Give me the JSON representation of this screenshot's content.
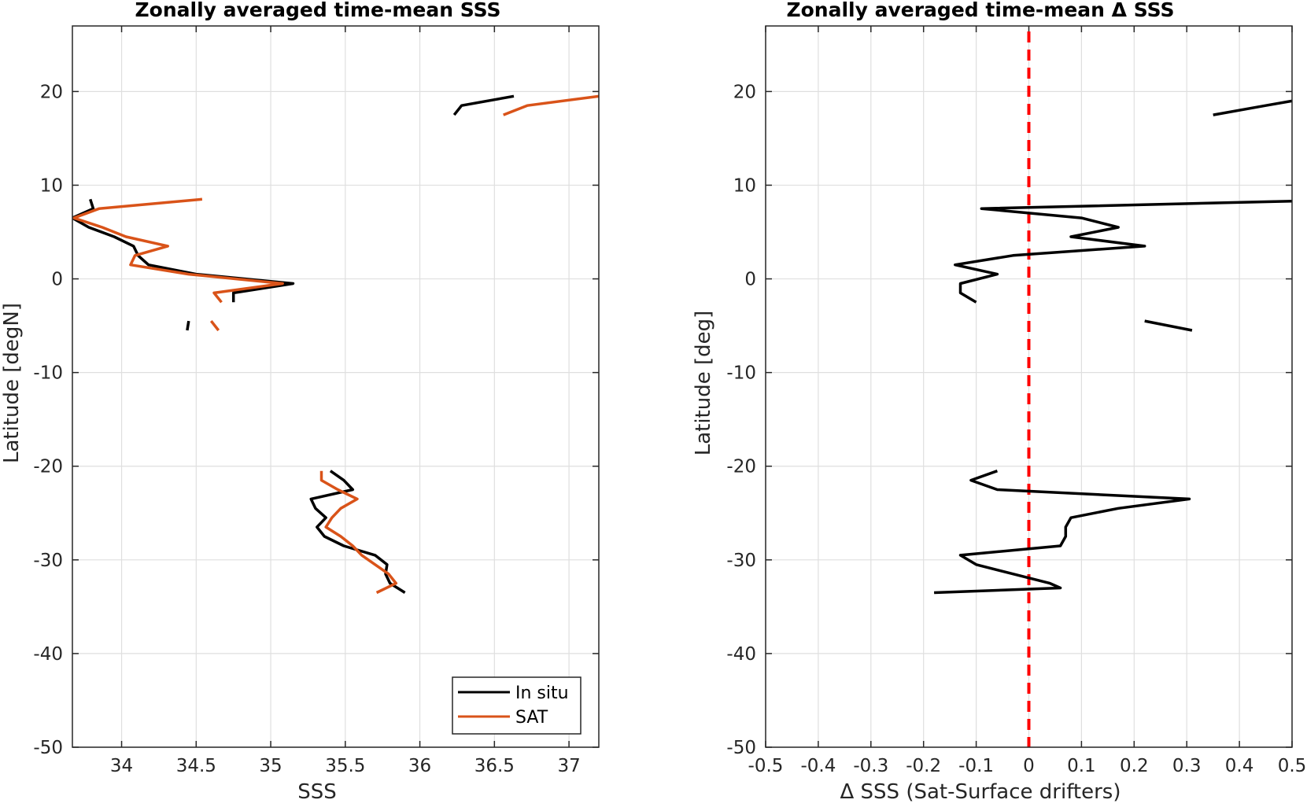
{
  "figure": {
    "colors": {
      "in_situ": "#000000",
      "sat": "#D95319",
      "zero_line": "#FF0000",
      "grid": "#DFDFDF",
      "axes": "#262626"
    }
  },
  "chart_data": [
    {
      "type": "line",
      "title": "Zonally averaged time-mean SSS",
      "xlabel": "SSS",
      "ylabel": "Latitude [degN]",
      "xlim": [
        33.67,
        37.2
      ],
      "ylim": [
        -50,
        27
      ],
      "xticks": [
        34,
        34.5,
        35,
        35.5,
        36,
        36.5,
        37
      ],
      "xtick_labels": [
        "34",
        "34.5",
        "35",
        "35.5",
        "36",
        "36.5",
        "37"
      ],
      "yticks": [
        -50,
        -40,
        -30,
        -20,
        -10,
        0,
        10,
        20
      ],
      "ytick_labels": [
        "-50",
        "-40",
        "-30",
        "-20",
        "-10",
        "0",
        "10",
        "20"
      ],
      "grid": true,
      "legend": {
        "position": "bottom-right",
        "entries": [
          "In situ",
          "SAT"
        ]
      },
      "series": [
        {
          "name": "In situ",
          "color": "#000000",
          "segments": [
            [
              [
                36.23,
                17.5
              ],
              [
                36.28,
                18.5
              ],
              [
                36.63,
                19.5
              ]
            ],
            [
              [
                33.79,
                8.5
              ],
              [
                33.81,
                7.5
              ],
              [
                33.67,
                6.5
              ],
              [
                33.78,
                5.5
              ],
              [
                33.95,
                4.5
              ],
              [
                34.08,
                3.5
              ],
              [
                34.11,
                2.5
              ],
              [
                34.18,
                1.5
              ],
              [
                34.5,
                0.5
              ],
              [
                35.15,
                -0.5
              ],
              [
                34.75,
                -1.5
              ],
              [
                34.75,
                -2.5
              ]
            ],
            [
              [
                34.45,
                -4.5
              ],
              [
                34.44,
                -5.5
              ]
            ],
            [
              [
                35.4,
                -20.5
              ],
              [
                35.49,
                -21.5
              ],
              [
                35.55,
                -22.5
              ],
              [
                35.27,
                -23.5
              ],
              [
                35.3,
                -24.5
              ],
              [
                35.37,
                -25.5
              ],
              [
                35.31,
                -26.5
              ],
              [
                35.36,
                -27.5
              ],
              [
                35.49,
                -28.5
              ],
              [
                35.7,
                -29.5
              ],
              [
                35.78,
                -30.5
              ],
              [
                35.77,
                -31.5
              ],
              [
                35.8,
                -32.5
              ],
              [
                35.9,
                -33.5
              ]
            ]
          ]
        },
        {
          "name": "SAT",
          "color": "#D95319",
          "segments": [
            [
              [
                36.56,
                17.5
              ],
              [
                36.72,
                18.5
              ],
              [
                37.2,
                19.5
              ]
            ],
            [
              [
                34.54,
                8.5
              ],
              [
                33.85,
                7.5
              ],
              [
                33.68,
                6.5
              ],
              [
                33.87,
                5.5
              ],
              [
                34.03,
                4.5
              ],
              [
                34.31,
                3.5
              ],
              [
                34.09,
                2.5
              ],
              [
                34.06,
                1.5
              ],
              [
                34.45,
                0.5
              ],
              [
                35.08,
                -0.5
              ],
              [
                34.62,
                -1.5
              ],
              [
                34.67,
                -2.5
              ]
            ],
            [
              [
                34.6,
                -4.5
              ],
              [
                34.65,
                -5.5
              ]
            ],
            [
              [
                35.34,
                -20.5
              ],
              [
                35.34,
                -21.5
              ],
              [
                35.45,
                -22.5
              ],
              [
                35.58,
                -23.5
              ],
              [
                35.47,
                -24.5
              ],
              [
                35.41,
                -25.5
              ],
              [
                35.37,
                -26.5
              ],
              [
                35.47,
                -27.5
              ],
              [
                35.55,
                -28.5
              ],
              [
                35.61,
                -29.5
              ],
              [
                35.7,
                -30.5
              ],
              [
                35.79,
                -31.5
              ],
              [
                35.84,
                -32.5
              ],
              [
                35.71,
                -33.5
              ]
            ]
          ]
        }
      ]
    },
    {
      "type": "line",
      "title": "Zonally averaged time-mean Δ SSS",
      "xlabel": "Δ SSS (Sat-Surface drifters)",
      "ylabel": "Latitude [deg]",
      "xlim": [
        -0.5,
        0.5
      ],
      "ylim": [
        -50,
        27
      ],
      "xticks": [
        -0.5,
        -0.4,
        -0.3,
        -0.2,
        -0.1,
        0,
        0.1,
        0.2,
        0.3,
        0.4,
        0.5
      ],
      "xtick_labels": [
        "-0.5",
        "-0.4",
        "-0.3",
        "-0.2",
        "-0.1",
        "0",
        "0.1",
        "0.2",
        "0.3",
        "0.4",
        "0.5"
      ],
      "yticks": [
        -50,
        -40,
        -30,
        -20,
        -10,
        0,
        10,
        20
      ],
      "ytick_labels": [
        "-50",
        "-40",
        "-30",
        "-20",
        "-10",
        "0",
        "10",
        "20"
      ],
      "grid": true,
      "reference_line": {
        "x": 0,
        "style": "dashed",
        "color": "#FF0000"
      },
      "series": [
        {
          "color": "#000000",
          "segments": [
            [
              [
                0.35,
                17.5
              ],
              [
                0.45,
                18.5
              ],
              [
                0.5,
                19.0
              ]
            ],
            [
              [
                0.5,
                8.3
              ],
              [
                -0.09,
                7.5
              ],
              [
                0.1,
                6.5
              ],
              [
                0.17,
                5.5
              ],
              [
                0.08,
                4.5
              ],
              [
                0.22,
                3.5
              ],
              [
                -0.03,
                2.5
              ],
              [
                -0.14,
                1.5
              ],
              [
                -0.06,
                0.5
              ],
              [
                -0.13,
                -0.5
              ],
              [
                -0.13,
                -1.5
              ],
              [
                -0.1,
                -2.5
              ]
            ],
            [
              [
                0.22,
                -4.5
              ],
              [
                0.31,
                -5.5
              ]
            ],
            [
              [
                -0.06,
                -20.5
              ],
              [
                -0.11,
                -21.5
              ],
              [
                -0.06,
                -22.5
              ],
              [
                0.305,
                -23.5
              ],
              [
                0.17,
                -24.5
              ],
              [
                0.08,
                -25.5
              ],
              [
                0.07,
                -26.5
              ],
              [
                0.07,
                -27.5
              ],
              [
                0.06,
                -28.5
              ],
              [
                -0.13,
                -29.5
              ],
              [
                -0.1,
                -30.5
              ],
              [
                -0.03,
                -31.5
              ],
              [
                0.04,
                -32.5
              ],
              [
                0.06,
                -33.0
              ],
              [
                -0.18,
                -33.5
              ]
            ]
          ]
        }
      ]
    }
  ]
}
